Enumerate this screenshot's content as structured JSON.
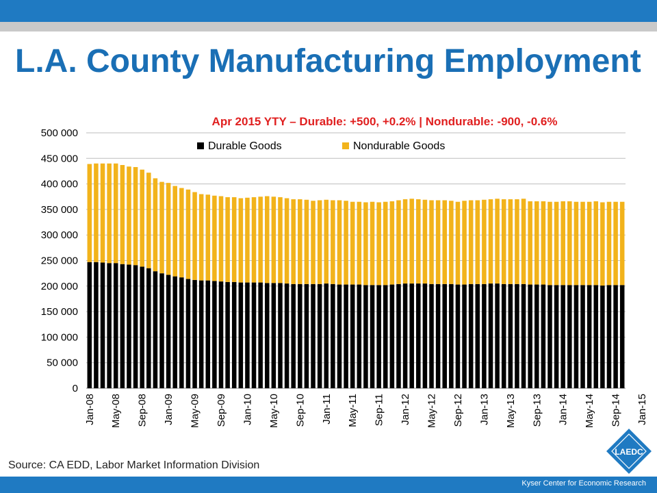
{
  "title": "L.A. County Manufacturing Employment",
  "source": "Source: CA EDD, Labor Market Information Division",
  "footer": "Kyser Center for Economic Research",
  "logo_text": "LAEDC",
  "colors": {
    "header": "#1f7ac2",
    "stripe": "#c9c9c9",
    "durable": "#000000",
    "nondurable": "#f2b31b",
    "title": "#1a6fb5",
    "subtitle": "#e02020"
  },
  "chart_data": {
    "type": "bar",
    "stacked": true,
    "subtitle": "Apr 2015 YTY – Durable: +500, +0.2% | Nondurable:  -900, -0.6%",
    "ylim": [
      0,
      500000
    ],
    "yticks": [
      "0",
      "50 000",
      "100 000",
      "150 000",
      "200 000",
      "250 000",
      "300 000",
      "350 000",
      "400 000",
      "450 000",
      "500 000"
    ],
    "ytick_values": [
      0,
      50000,
      100000,
      150000,
      200000,
      250000,
      300000,
      350000,
      400000,
      450000,
      500000
    ],
    "x_tick_labels": [
      "Jan-08",
      "May-08",
      "Sep-08",
      "Jan-09",
      "May-09",
      "Sep-09",
      "Jan-10",
      "May-10",
      "Sep-10",
      "Jan-11",
      "May-11",
      "Sep-11",
      "Jan-12",
      "May-12",
      "Sep-12",
      "Jan-13",
      "May-13",
      "Sep-13",
      "Jan-14",
      "May-14",
      "Sep-14",
      "Jan-15"
    ],
    "x_tick_every": 4,
    "legend_position": "top",
    "grid": true,
    "series": [
      {
        "name": "Durable Goods",
        "color": "#000000",
        "values": [
          247000,
          247000,
          246000,
          245000,
          245000,
          243000,
          242000,
          241000,
          238000,
          235000,
          229000,
          225000,
          222000,
          219000,
          217000,
          214000,
          212000,
          211000,
          211000,
          210000,
          209000,
          208000,
          208000,
          207000,
          207000,
          207000,
          207000,
          206000,
          206000,
          206000,
          205000,
          204000,
          204000,
          204000,
          204000,
          204000,
          205000,
          204000,
          203000,
          203000,
          203000,
          203000,
          202000,
          202000,
          202000,
          202000,
          203000,
          204000,
          205000,
          205000,
          205000,
          205000,
          204000,
          204000,
          204000,
          204000,
          203000,
          203000,
          204000,
          204000,
          204000,
          205000,
          205000,
          204000,
          204000,
          204000,
          204000,
          203000,
          203000,
          203000,
          202000,
          202000,
          202000,
          202000,
          202000,
          202000,
          202000,
          202000,
          201000,
          202000,
          202000,
          202000
        ]
      },
      {
        "name": "Nondurable Goods",
        "color": "#f2b31b",
        "values": [
          192000,
          193000,
          194000,
          195000,
          195000,
          194000,
          192000,
          192000,
          190000,
          187000,
          182000,
          179000,
          180000,
          177000,
          175000,
          175000,
          172000,
          169000,
          168000,
          167000,
          167000,
          166000,
          166000,
          165000,
          166000,
          167000,
          168000,
          170000,
          169000,
          168000,
          167000,
          166000,
          166000,
          165000,
          163000,
          164000,
          164000,
          164000,
          165000,
          164000,
          162000,
          162000,
          162000,
          163000,
          162000,
          163000,
          163000,
          164000,
          165000,
          166000,
          165000,
          164000,
          164000,
          164000,
          164000,
          163000,
          162000,
          164000,
          164000,
          164000,
          165000,
          165000,
          166000,
          166000,
          166000,
          166000,
          167000,
          163000,
          163000,
          163000,
          163000,
          163000,
          164000,
          164000,
          163000,
          163000,
          163000,
          164000,
          163000,
          163000,
          163000,
          163000
        ]
      }
    ]
  }
}
